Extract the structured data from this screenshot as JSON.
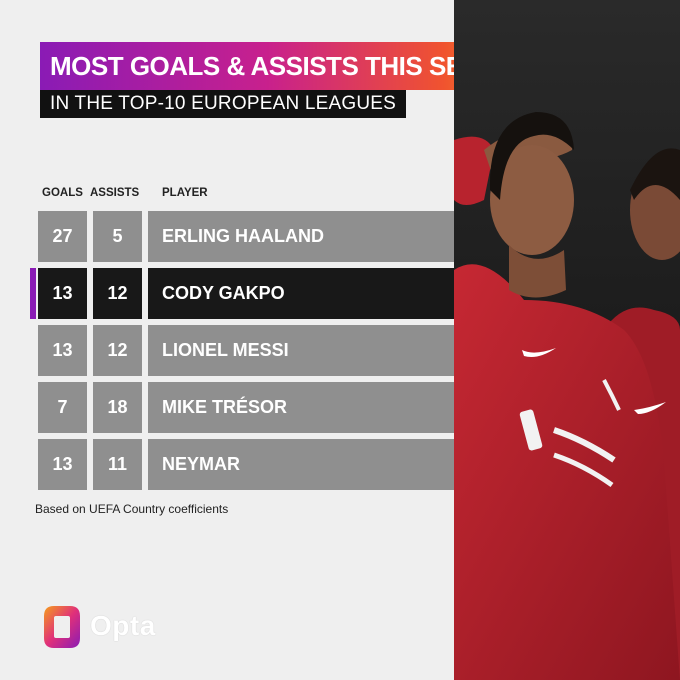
{
  "header": {
    "title": "MOST GOALS & ASSISTS THIS SEASON",
    "subtitle": "IN THE TOP-10 EUROPEAN LEAGUES"
  },
  "table": {
    "columns": {
      "goals": "GOALS",
      "assists": "ASSISTS",
      "player": "PLAYER"
    },
    "rows": [
      {
        "goals": "27",
        "assists": "5",
        "player": "ERLING HAALAND",
        "highlight": false
      },
      {
        "goals": "13",
        "assists": "12",
        "player": "CODY GAKPO",
        "highlight": true
      },
      {
        "goals": "13",
        "assists": "12",
        "player": "LIONEL MESSI",
        "highlight": false
      },
      {
        "goals": "7",
        "assists": "18",
        "player": "MIKE TRÉSOR",
        "highlight": false
      },
      {
        "goals": "13",
        "assists": "11",
        "player": "NEYMAR",
        "highlight": false
      }
    ]
  },
  "footnote": "Based on UEFA Country coefficients",
  "brand": {
    "name": "Opta"
  },
  "colors": {
    "accent": "#8a1bb5",
    "row": "#8f8f8f",
    "row_highlight": "#181818",
    "jersey": "#b3202c"
  }
}
